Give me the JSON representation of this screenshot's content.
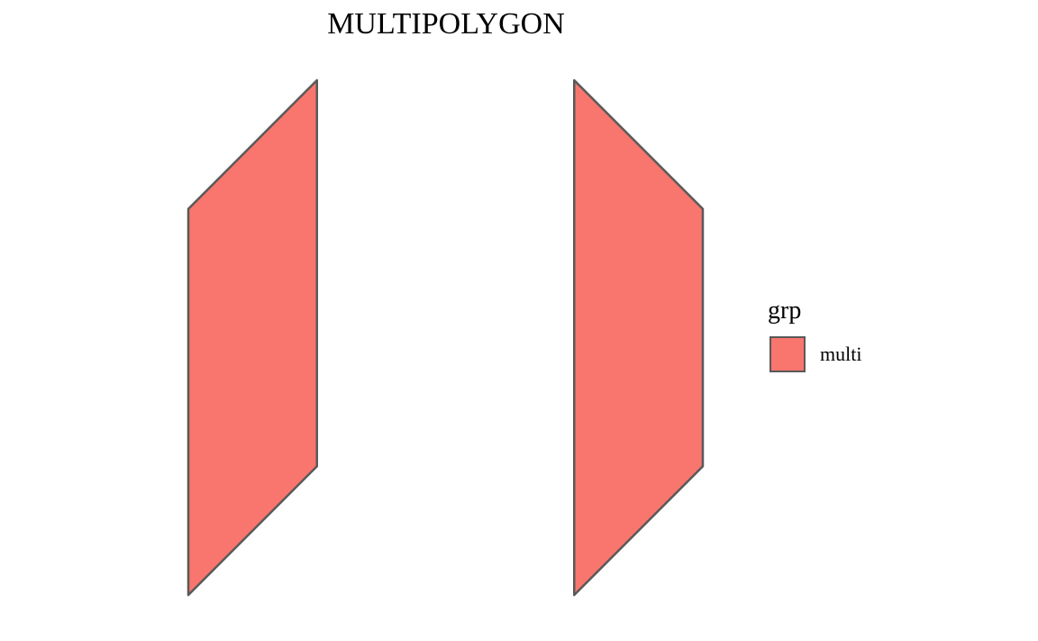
{
  "chart_data": {
    "type": "polygon",
    "title": "MULTIPOLYGON",
    "xlabel": "",
    "ylabel": "",
    "grid": false,
    "xlim": [
      0,
      4
    ],
    "ylim": [
      0,
      4
    ],
    "legend": {
      "title": "grp",
      "placement": "right",
      "entries": [
        {
          "label": "multi",
          "fill": "#F8766D"
        }
      ]
    },
    "series": [
      {
        "name": "multi",
        "fill": "#F8766D",
        "stroke": "#595959",
        "polygons": [
          [
            [
              0,
              0
            ],
            [
              0,
              3
            ],
            [
              1,
              4
            ],
            [
              1,
              1
            ]
          ],
          [
            [
              3,
              0
            ],
            [
              3,
              4
            ],
            [
              4,
              3
            ],
            [
              4,
              1
            ]
          ]
        ]
      }
    ]
  }
}
